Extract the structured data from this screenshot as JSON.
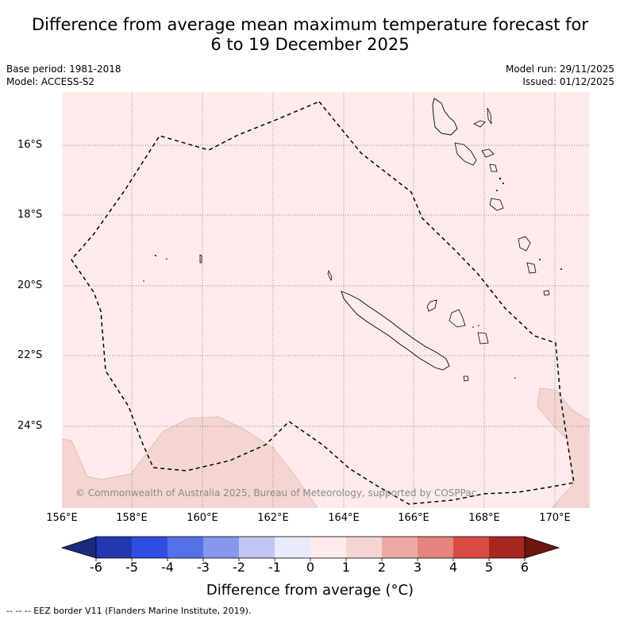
{
  "header": {
    "title_line1": "Difference from average mean maximum temperature forecast for",
    "title_line2": "6 to 19 December 2025",
    "base_period": "Base period: 1981-2018",
    "model": "Model: ACCESS-S2",
    "model_run": "Model run: 29/11/2025",
    "issued": "Issued: 01/12/2025"
  },
  "map": {
    "latitude_labels": [
      "16°S",
      "18°S",
      "20°S",
      "22°S",
      "24°S"
    ],
    "longitude_labels": [
      "156°E",
      "158°E",
      "160°E",
      "162°E",
      "164°E",
      "166°E",
      "168°E",
      "170°E"
    ],
    "copyright": "© Commonwealth of Australia 2025, Bureau of Meteorology, supported by COSPPac",
    "background_anomaly_band": "0 to 1",
    "warm_patch_anomaly_band": "1 to 2"
  },
  "legend": {
    "ticks": [
      "-6",
      "-5",
      "-4",
      "-3",
      "-2",
      "-1",
      "0",
      "1",
      "2",
      "3",
      "4",
      "5",
      "6"
    ],
    "colors": [
      "#1a2a80",
      "#2238b0",
      "#2f4ee0",
      "#5570e8",
      "#8797ec",
      "#c0c7f4",
      "#e8ebfb",
      "#fcebea",
      "#f5d5d2",
      "#eda9a6",
      "#e5837d",
      "#d94a40",
      "#a82620",
      "#6b1612"
    ],
    "title": "Difference from average (°C)"
  },
  "footnote": "-- -- -- EEZ border V11 (Flanders Marine Institute, 2019)."
}
